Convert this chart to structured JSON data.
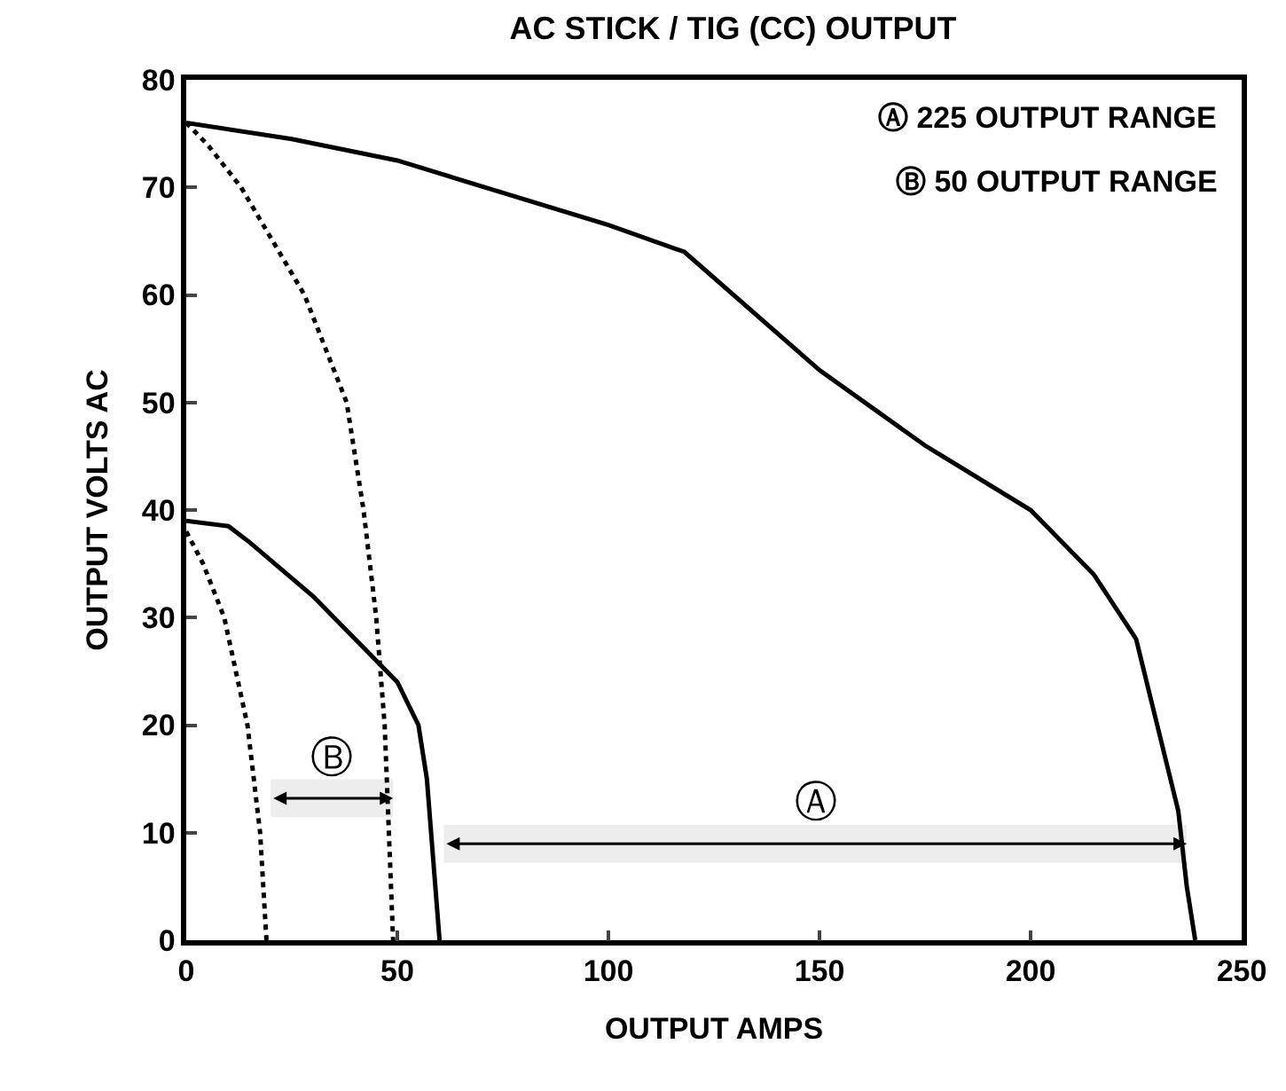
{
  "chart_data": {
    "type": "line",
    "title": "AC STICK / TIG (CC) OUTPUT",
    "xlabel": "OUTPUT AMPS",
    "ylabel": "OUTPUT VOLTS AC",
    "xlim": [
      0,
      250
    ],
    "xticks": [
      0,
      50,
      100,
      150,
      200,
      250
    ],
    "ylim": [
      0,
      80
    ],
    "yticks": [
      0,
      10,
      20,
      30,
      40,
      50,
      60,
      70,
      80
    ],
    "grid": false,
    "series": [
      {
        "color": "#000000",
        "line_style": "solid",
        "x": [
          0,
          25,
          50,
          75,
          100,
          118,
          150,
          175,
          200,
          215,
          225,
          230,
          235,
          237,
          239
        ],
        "values": [
          76,
          74.5,
          72.5,
          69.5,
          66.5,
          64,
          53,
          46,
          40,
          34,
          28,
          20,
          12,
          5,
          0
        ]
      },
      {
        "color": "#000000",
        "line_style": "dotted",
        "x": [
          0,
          5,
          13,
          28,
          38,
          42,
          45,
          47,
          49
        ],
        "values": [
          76,
          74,
          70,
          60,
          50,
          40,
          30,
          20,
          0
        ]
      },
      {
        "color": "#000000",
        "line_style": "solid",
        "x": [
          0,
          10,
          15,
          30,
          40,
          50,
          55,
          57,
          59,
          60
        ],
        "values": [
          39,
          38.5,
          37,
          32,
          28,
          24,
          20,
          15,
          5,
          0
        ]
      },
      {
        "color": "#000000",
        "line_style": "dotted",
        "x": [
          0,
          4,
          9,
          14.5,
          17.5,
          19
        ],
        "values": [
          38,
          35,
          30,
          20,
          10,
          0
        ]
      }
    ],
    "bands": [
      {
        "axis": "x",
        "from": 61,
        "to": 237,
        "label": "Ⓐ"
      },
      {
        "axis": "x",
        "from": 20,
        "to": 49,
        "label": "Ⓑ"
      }
    ],
    "annotations": [
      "Ⓐ 225 OUTPUT RANGE",
      "Ⓑ 50 OUTPUT RANGE"
    ]
  }
}
